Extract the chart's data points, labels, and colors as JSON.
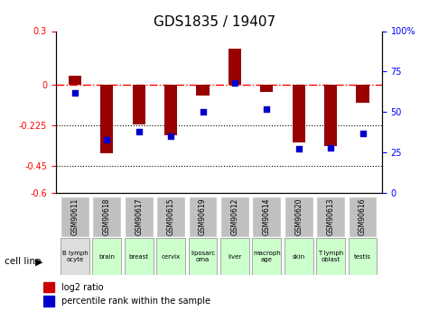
{
  "title": "GDS1835 / 19407",
  "samples": [
    "GSM90611",
    "GSM90618",
    "GSM90617",
    "GSM90615",
    "GSM90619",
    "GSM90612",
    "GSM90614",
    "GSM90620",
    "GSM90613",
    "GSM90616"
  ],
  "cell_lines": [
    "B lymph\nocyte",
    "brain",
    "breast",
    "cervix",
    "liposarc\noma",
    "liver",
    "macroph\nage",
    "skin",
    "T lymph\noblast",
    "testis"
  ],
  "log2_ratio": [
    0.05,
    -0.38,
    -0.22,
    -0.28,
    -0.06,
    0.2,
    -0.04,
    -0.32,
    -0.34,
    -0.1
  ],
  "percentile_rank": [
    62,
    33,
    38,
    35,
    50,
    68,
    52,
    27,
    28,
    37
  ],
  "ylim_left": [
    -0.6,
    0.3
  ],
  "ylim_right": [
    0,
    100
  ],
  "yticks_left": [
    0.3,
    0,
    -0.225,
    -0.45,
    -0.6
  ],
  "yticks_right": [
    100,
    75,
    50,
    25,
    0
  ],
  "ytick_left_labels": [
    "0.3",
    "0",
    "-0.225",
    "-0.45",
    "-0.6"
  ],
  "ytick_right_labels": [
    "100%",
    "75",
    "50",
    "25",
    "0"
  ],
  "bar_color": "#990000",
  "dot_color": "#0000cc",
  "dotted_lines": [
    -0.225,
    -0.45
  ],
  "cell_line_colors": [
    "#dddddd",
    "#ccffcc",
    "#ccffcc",
    "#ccffcc",
    "#ccffcc",
    "#ccffcc",
    "#ccffcc",
    "#ccffcc",
    "#ccffcc",
    "#ccffcc"
  ],
  "sample_box_color": "#c0c0c0",
  "legend_bar_color": "#cc0000",
  "legend_dot_color": "#0000cc"
}
